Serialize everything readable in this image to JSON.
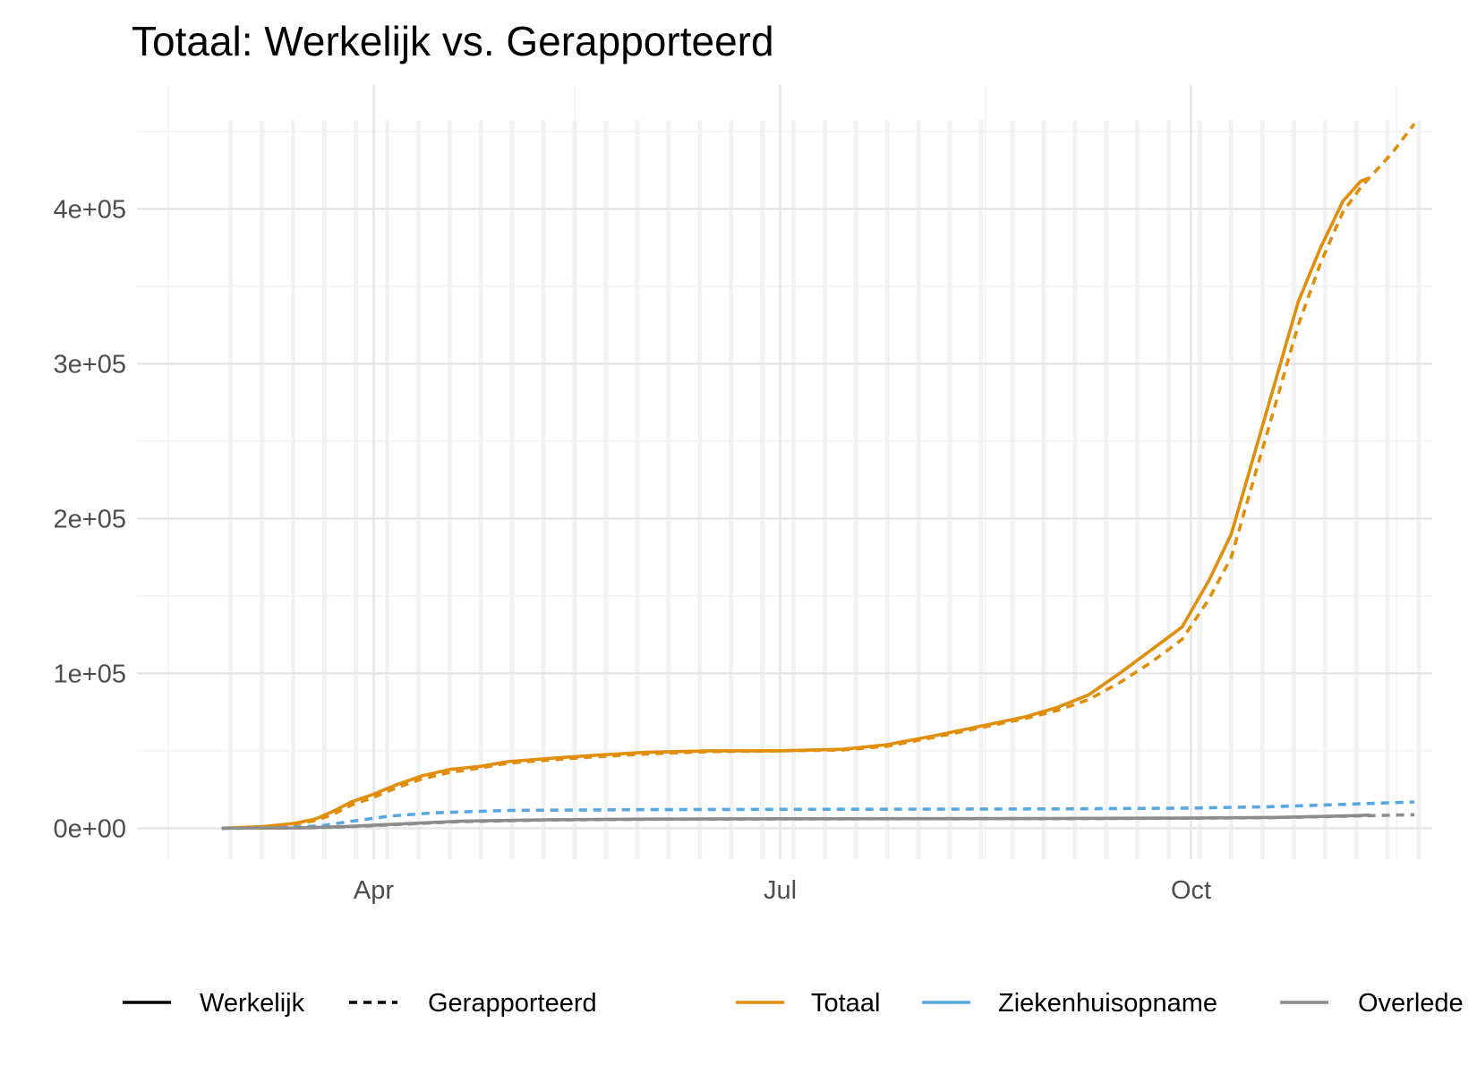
{
  "chart_data": {
    "type": "line",
    "title": "Totaal: Werkelijk vs. Gerapporteerd",
    "xlabel": "",
    "ylabel": "",
    "x_type": "date",
    "xlim": [
      "2020-02-08",
      "2020-11-24"
    ],
    "ylim": [
      -20000,
      480000
    ],
    "y_ticks": [
      0,
      100000,
      200000,
      300000,
      400000
    ],
    "y_tick_labels": [
      "0e+00",
      "1e+05",
      "2e+05",
      "3e+05",
      "4e+05"
    ],
    "x_ticks": [
      "2020-04-01",
      "2020-07-01",
      "2020-10-01"
    ],
    "x_tick_labels": [
      "Apr",
      "Jul",
      "Oct"
    ],
    "grid": true,
    "legend_position": "bottom",
    "legend": {
      "linetype": [
        {
          "label": "Werkelijk",
          "dash": "solid"
        },
        {
          "label": "Gerapporteerd",
          "dash": "dashed"
        }
      ],
      "color": [
        {
          "label": "Totaal",
          "color": "#E08E0B"
        },
        {
          "label": "Ziekenhuisopname",
          "color": "#56A8E0"
        },
        {
          "label": "Overlede",
          "color": "#8C8C8C"
        }
      ]
    },
    "series": [
      {
        "name": "Totaal",
        "dash": "solid",
        "color": "#E08E0B",
        "x": [
          "2020-02-27",
          "2020-03-07",
          "2020-03-14",
          "2020-03-19",
          "2020-03-23",
          "2020-03-27",
          "2020-04-01",
          "2020-04-06",
          "2020-04-12",
          "2020-04-18",
          "2020-04-25",
          "2020-05-01",
          "2020-05-10",
          "2020-05-20",
          "2020-06-01",
          "2020-06-15",
          "2020-07-01",
          "2020-07-15",
          "2020-07-25",
          "2020-08-05",
          "2020-08-15",
          "2020-08-25",
          "2020-09-01",
          "2020-09-08",
          "2020-09-15",
          "2020-09-22",
          "2020-09-29",
          "2020-10-05",
          "2020-10-10",
          "2020-10-15",
          "2020-10-20",
          "2020-10-25",
          "2020-10-30",
          "2020-11-04",
          "2020-11-08",
          "2020-11-10"
        ],
        "y": [
          0,
          1000,
          3000,
          6000,
          11000,
          17000,
          22000,
          28000,
          34000,
          38000,
          40000,
          43000,
          45000,
          47000,
          49000,
          50000,
          50000,
          51000,
          54000,
          60000,
          66000,
          72000,
          78000,
          86000,
          100000,
          115000,
          130000,
          160000,
          190000,
          240000,
          290000,
          340000,
          375000,
          405000,
          418000,
          420000
        ]
      },
      {
        "name": "Totaal",
        "dash": "dashed",
        "color": "#E08E0B",
        "x": [
          "2020-02-27",
          "2020-03-07",
          "2020-03-14",
          "2020-03-19",
          "2020-03-23",
          "2020-03-27",
          "2020-04-01",
          "2020-04-06",
          "2020-04-12",
          "2020-04-18",
          "2020-04-25",
          "2020-05-01",
          "2020-05-10",
          "2020-05-20",
          "2020-06-01",
          "2020-06-15",
          "2020-07-01",
          "2020-07-15",
          "2020-07-25",
          "2020-08-05",
          "2020-08-15",
          "2020-08-25",
          "2020-09-01",
          "2020-09-08",
          "2020-09-15",
          "2020-09-22",
          "2020-09-29",
          "2020-10-05",
          "2020-10-10",
          "2020-10-15",
          "2020-10-20",
          "2020-10-25",
          "2020-10-30",
          "2020-11-04",
          "2020-11-08",
          "2020-11-15",
          "2020-11-20"
        ],
        "y": [
          0,
          800,
          2500,
          5000,
          9000,
          15000,
          20000,
          26000,
          32000,
          36000,
          39000,
          42000,
          44000,
          46000,
          48000,
          49500,
          50000,
          50500,
          53000,
          59000,
          65000,
          71000,
          76000,
          83000,
          94000,
          107000,
          122000,
          148000,
          175000,
          225000,
          275000,
          325000,
          365000,
          398000,
          414000,
          436000,
          455000
        ]
      },
      {
        "name": "Ziekenhuisopname",
        "dash": "dashed",
        "color": "#56A8E0",
        "x": [
          "2020-02-27",
          "2020-03-10",
          "2020-03-20",
          "2020-03-27",
          "2020-04-05",
          "2020-04-15",
          "2020-05-01",
          "2020-06-01",
          "2020-07-01",
          "2020-08-01",
          "2020-09-01",
          "2020-10-01",
          "2020-10-20",
          "2020-11-05",
          "2020-11-20"
        ],
        "y": [
          0,
          200,
          1500,
          4500,
          8000,
          10000,
          11500,
          12000,
          12200,
          12300,
          12500,
          13000,
          14000,
          15500,
          17000
        ]
      },
      {
        "name": "Overlede",
        "dash": "solid",
        "color": "#8C8C8C",
        "x": [
          "2020-02-27",
          "2020-03-15",
          "2020-03-25",
          "2020-04-05",
          "2020-04-20",
          "2020-05-10",
          "2020-06-01",
          "2020-07-01",
          "2020-08-01",
          "2020-09-01",
          "2020-10-01",
          "2020-10-20",
          "2020-11-05",
          "2020-11-10"
        ],
        "y": [
          0,
          200,
          1000,
          2500,
          4500,
          5500,
          5900,
          6100,
          6200,
          6300,
          6600,
          7000,
          8000,
          8500
        ]
      },
      {
        "name": "Overlede",
        "dash": "dashed",
        "color": "#8C8C8C",
        "x": [
          "2020-02-27",
          "2020-03-15",
          "2020-03-25",
          "2020-04-05",
          "2020-04-20",
          "2020-05-10",
          "2020-06-01",
          "2020-07-01",
          "2020-08-01",
          "2020-09-01",
          "2020-10-01",
          "2020-10-20",
          "2020-11-05",
          "2020-11-20"
        ],
        "y": [
          0,
          150,
          800,
          2200,
          4200,
          5300,
          5800,
          6000,
          6100,
          6200,
          6500,
          6900,
          7800,
          8700
        ]
      }
    ]
  }
}
